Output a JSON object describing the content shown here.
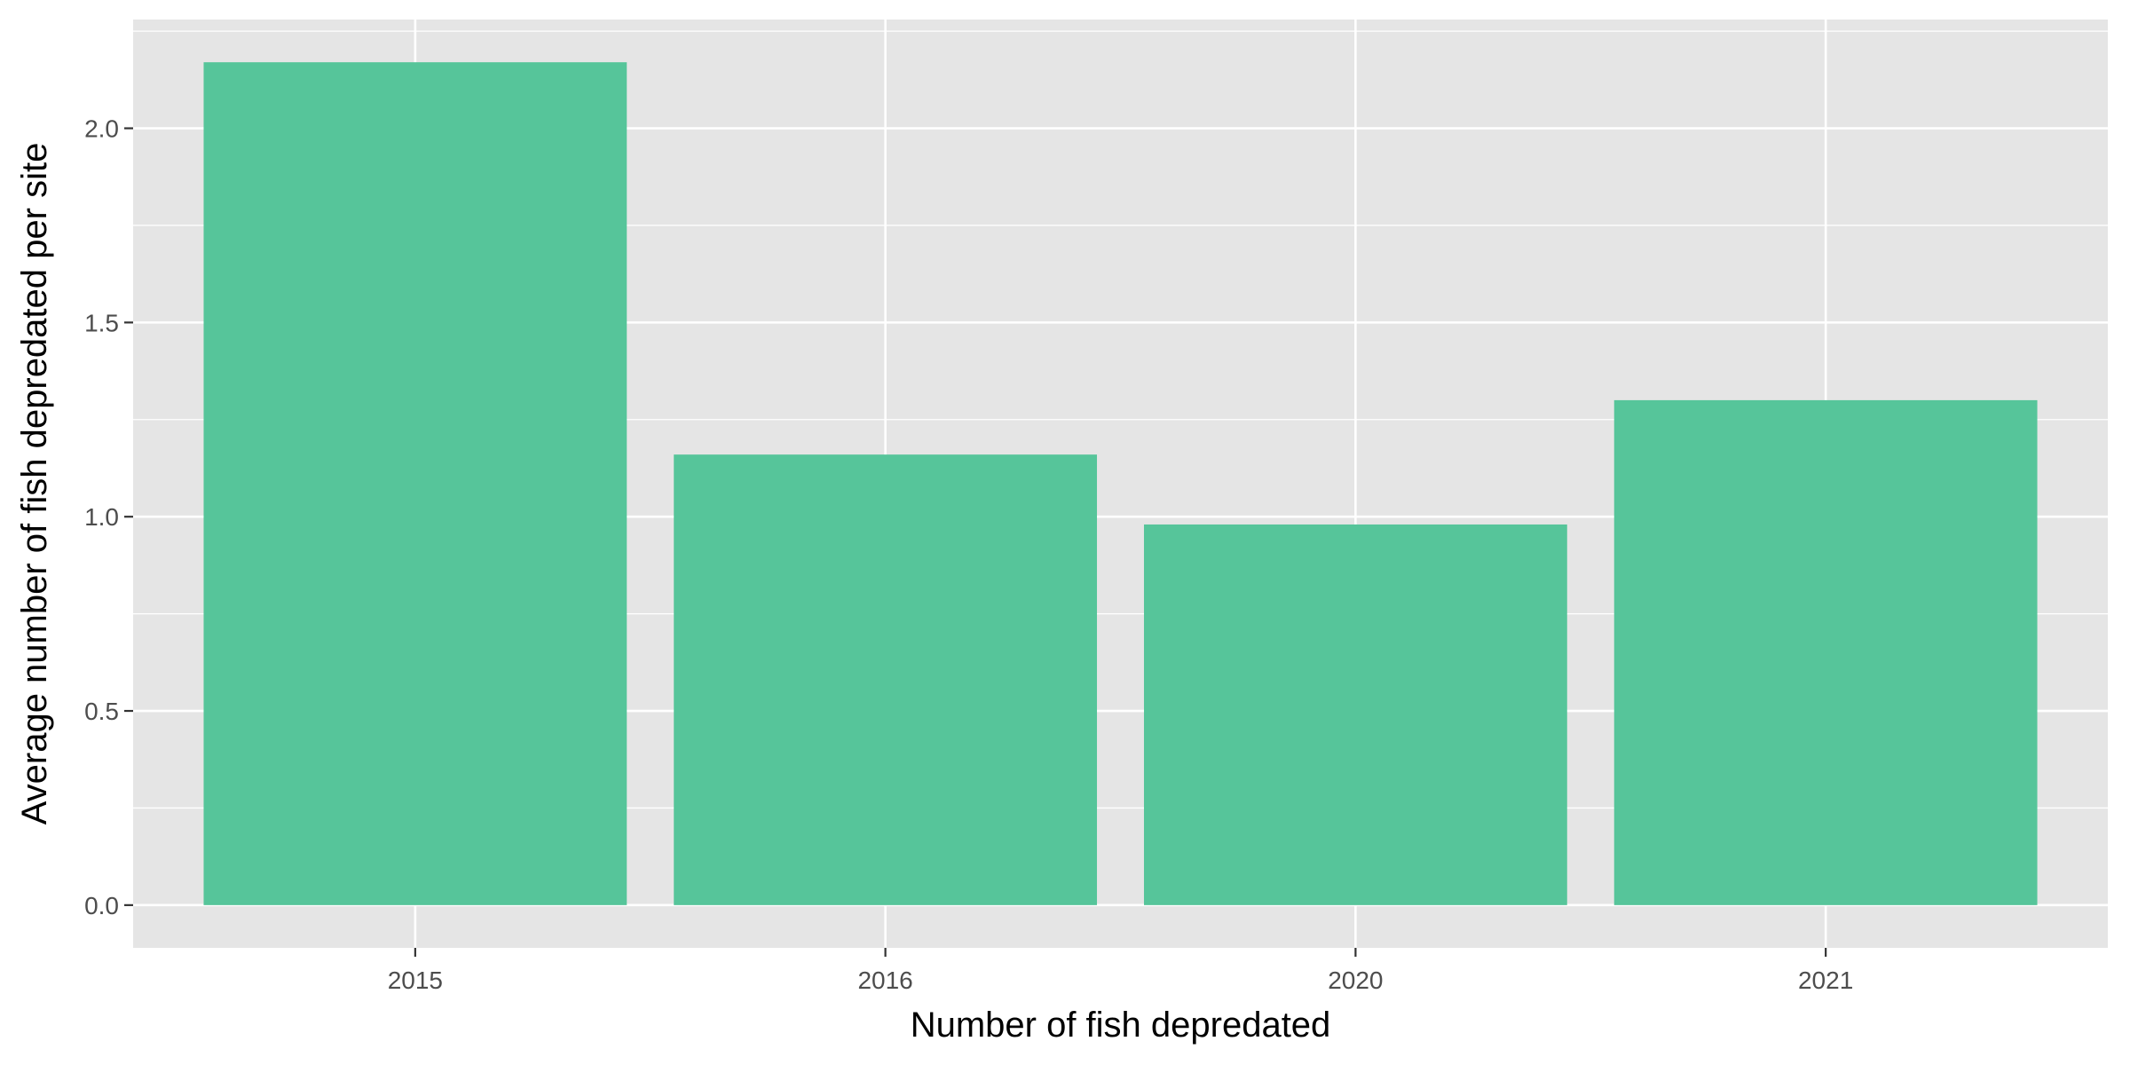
{
  "chart_data": {
    "type": "bar",
    "categories": [
      "2015",
      "2016",
      "2020",
      "2021"
    ],
    "values": [
      2.17,
      1.16,
      0.98,
      1.3
    ],
    "title": "",
    "xlabel": "Number of fish depredated",
    "ylabel": "Average number of fish depredated per site",
    "ylim": [
      -0.11,
      2.28
    ],
    "yticks": [
      0.0,
      0.5,
      1.0,
      1.5,
      2.0
    ],
    "ytick_labels": [
      "0.0",
      "0.5",
      "1.0",
      "1.5",
      "2.0"
    ],
    "grid": true,
    "legend": "none",
    "colors": {
      "bar": "#56C59A",
      "panel": "#E5E5E5",
      "grid": "#FFFFFF",
      "tick": "#333333"
    }
  }
}
